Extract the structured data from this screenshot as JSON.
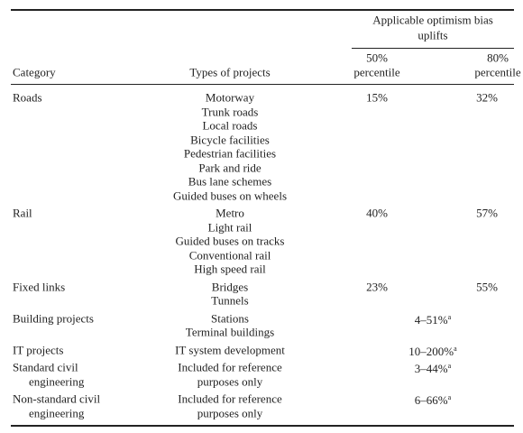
{
  "table": {
    "group_header": [
      "Applicable optimism bias",
      "uplifts"
    ],
    "columns": [
      [
        "Category"
      ],
      [
        "Types of projects"
      ],
      [
        "50%",
        "percentile"
      ],
      [
        "80%",
        "percentile"
      ]
    ],
    "rows": [
      {
        "category": [
          "Roads"
        ],
        "types": [
          "Motorway",
          "Trunk roads",
          "Local roads",
          "Bicycle facilities",
          "Pedestrian facilities",
          "Park and ride",
          "Bus lane schemes",
          "Guided buses on wheels"
        ],
        "p50": "15%",
        "p80": "32%"
      },
      {
        "category": [
          "Rail"
        ],
        "types": [
          "Metro",
          "Light rail",
          "Guided buses on tracks",
          "Conventional rail",
          "High speed rail"
        ],
        "p50": "40%",
        "p80": "57%"
      },
      {
        "category": [
          "Fixed links"
        ],
        "types": [
          "Bridges",
          "Tunnels"
        ],
        "p50": "23%",
        "p80": "55%"
      },
      {
        "category": [
          "Building projects"
        ],
        "types": [
          "Stations",
          "Terminal buildings"
        ],
        "range": "4–51%",
        "note": "a"
      },
      {
        "category": [
          "IT projects"
        ],
        "types": [
          "IT system development"
        ],
        "range": "10–200%",
        "note": "a"
      },
      {
        "category": [
          "Standard civil",
          "engineering"
        ],
        "types": [
          "Included for reference",
          "purposes only"
        ],
        "range": "3–44%",
        "note": "a"
      },
      {
        "category": [
          "Non-standard civil",
          "engineering"
        ],
        "types": [
          "Included for reference",
          "purposes only"
        ],
        "range": "6–66%",
        "note": "a"
      }
    ]
  }
}
